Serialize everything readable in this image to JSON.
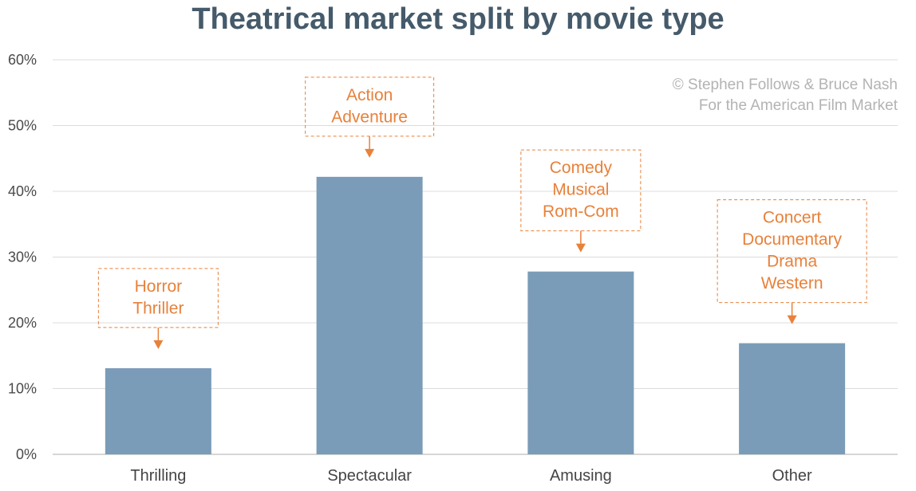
{
  "chart_data": {
    "type": "bar",
    "title": "Theatrical market split by movie type",
    "categories": [
      "Thrilling",
      "Spectacular",
      "Amusing",
      "Other"
    ],
    "values": [
      13.1,
      42.2,
      27.8,
      16.9
    ],
    "value_unit": "percent",
    "ylim": [
      0,
      60
    ],
    "yticks": [
      "0%",
      "10%",
      "20%",
      "30%",
      "40%",
      "50%",
      "60%"
    ],
    "xlabel": "",
    "ylabel": "",
    "grid": true,
    "annotations": [
      {
        "category": "Thrilling",
        "lines": [
          "Horror",
          "Thriller"
        ]
      },
      {
        "category": "Spectacular",
        "lines": [
          "Action",
          "Adventure"
        ]
      },
      {
        "category": "Amusing",
        "lines": [
          "Comedy",
          "Musical",
          "Rom-Com"
        ]
      },
      {
        "category": "Other",
        "lines": [
          "Concert",
          "Documentary",
          "Drama",
          "Western"
        ]
      }
    ],
    "credit_lines": [
      "© Stephen Follows & Bruce Nash",
      "For the American Film Market"
    ]
  },
  "colors": {
    "bar": "#7a9cb8",
    "accent": "#e8813a",
    "title": "#455a6a",
    "grid": "#dcdcdc",
    "credit": "#b3b3b3"
  }
}
